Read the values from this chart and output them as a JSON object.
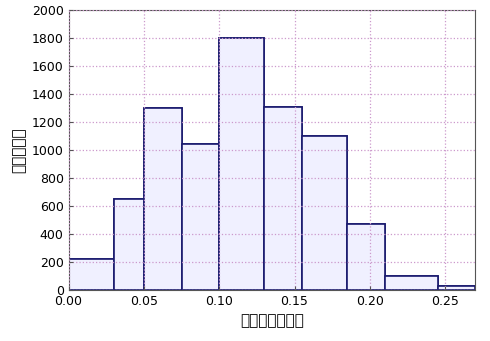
{
  "bar_lefts": [
    0.0,
    0.03,
    0.05,
    0.075,
    0.1,
    0.13,
    0.155,
    0.185,
    0.21,
    0.245
  ],
  "bar_widths": [
    0.03,
    0.02,
    0.025,
    0.025,
    0.03,
    0.025,
    0.03,
    0.025,
    0.035,
    0.025
  ],
  "bar_heights": [
    220,
    650,
    1300,
    1040,
    1800,
    1310,
    1100,
    470,
    100,
    25
  ],
  "bar_facecolor": "#f0f0ff",
  "bar_edgecolor": "#1a1a6e",
  "xlabel": "输入信号的幅度",
  "ylabel": "出现的次数",
  "xlim": [
    0,
    0.27
  ],
  "ylim": [
    0,
    2000
  ],
  "yticks": [
    0,
    200,
    400,
    600,
    800,
    1000,
    1200,
    1400,
    1600,
    1800,
    2000
  ],
  "xticks": [
    0,
    0.05,
    0.1,
    0.15,
    0.2,
    0.25
  ],
  "grid_color": "#cc99cc",
  "grid_linestyle": ":",
  "grid_linewidth": 0.9,
  "xlabel_fontsize": 11,
  "ylabel_fontsize": 11,
  "tick_fontsize": 9,
  "bg_color": "#ffffff",
  "spine_color": "#555555",
  "bar_linewidth": 1.2
}
